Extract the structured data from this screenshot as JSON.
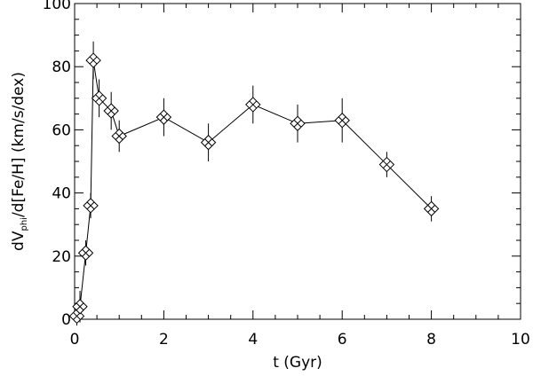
{
  "chart_data": {
    "type": "scatter",
    "title": "",
    "xlabel": "t (Gyr)",
    "ylabel_main": "dV",
    "ylabel_sub": "phi",
    "ylabel_rest": "/d[Fe/H] (km/s/dex)",
    "xlim": [
      0,
      10
    ],
    "ylim": [
      0,
      100
    ],
    "xticks": [
      "0",
      "2",
      "4",
      "6",
      "8",
      "10"
    ],
    "yticks": [
      "0",
      "20",
      "40",
      "60",
      "80",
      "100"
    ],
    "grid": false,
    "marker": "diamond-with-cross",
    "connected": true,
    "series": [
      {
        "points": [
          {
            "x": 0.05,
            "y": 1,
            "err": 3
          },
          {
            "x": 0.12,
            "y": 4,
            "err": 5
          },
          {
            "x": 0.25,
            "y": 21,
            "err": 4
          },
          {
            "x": 0.36,
            "y": 36,
            "err": 4
          },
          {
            "x": 0.42,
            "y": 82,
            "err": 6
          },
          {
            "x": 0.55,
            "y": 70,
            "err": 6
          },
          {
            "x": 0.82,
            "y": 66,
            "err": 6
          },
          {
            "x": 1.0,
            "y": 58,
            "err": 5
          },
          {
            "x": 2.0,
            "y": 64,
            "err": 6
          },
          {
            "x": 3.0,
            "y": 56,
            "err": 6
          },
          {
            "x": 4.0,
            "y": 68,
            "err": 6
          },
          {
            "x": 5.0,
            "y": 62,
            "err": 6
          },
          {
            "x": 6.0,
            "y": 63,
            "err": 7
          },
          {
            "x": 7.0,
            "y": 49,
            "err": 4
          },
          {
            "x": 8.0,
            "y": 35,
            "err": 4
          }
        ]
      }
    ]
  }
}
